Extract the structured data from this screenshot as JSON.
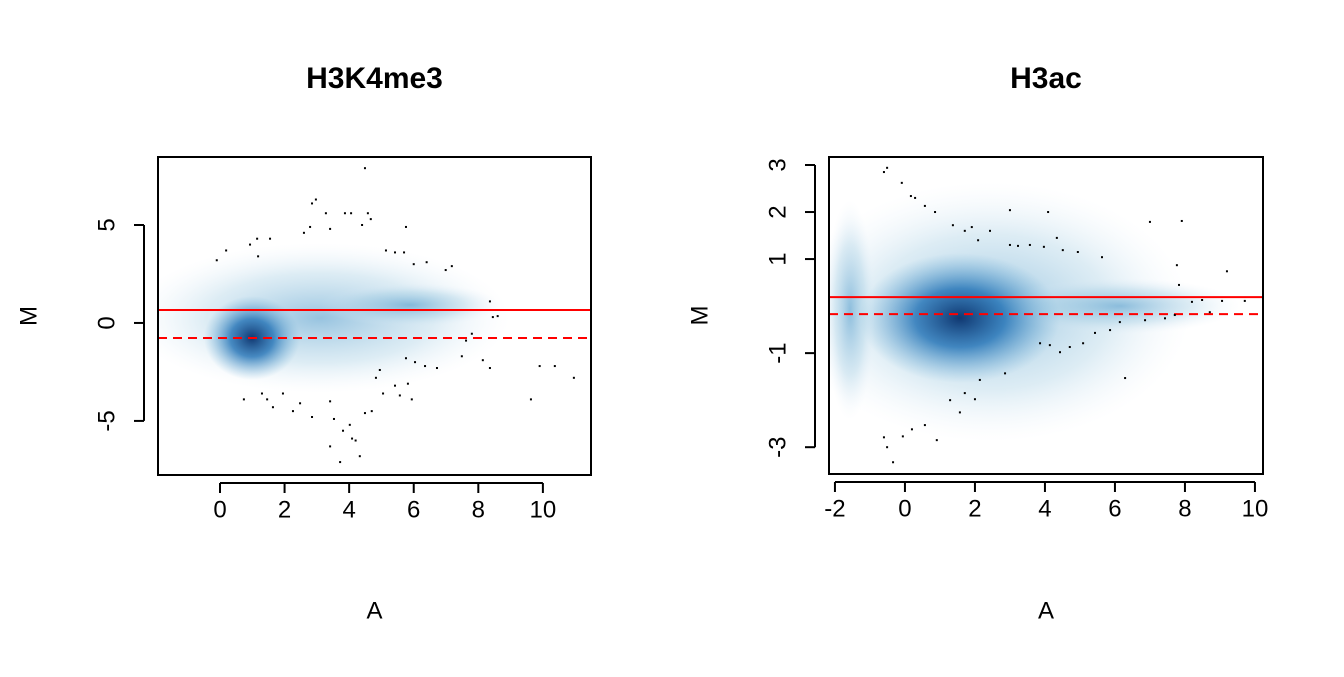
{
  "chart_data": [
    {
      "type": "scatter",
      "title": "H3K4me3",
      "x_label": "A",
      "y_label": "M",
      "xlim": [
        -1.92,
        11.49
      ],
      "ylim": [
        -7.76,
        8.47
      ],
      "xticks": [
        0,
        2,
        4,
        6,
        8,
        10
      ],
      "yticks": [
        -5,
        0,
        5
      ],
      "point_color": "#000000",
      "hline_color": "#ff0000",
      "hlines": [
        0.66,
        -0.77
      ],
      "hline_styles": [
        "solid",
        "dashed"
      ],
      "series": [
        {
          "name": "points",
          "color": "#000000",
          "x": [
            -0.1,
            0.19,
            0.93,
            1.15,
            1.18,
            1.55,
            2.6,
            2.85,
            2.97,
            2.79,
            3.28,
            3.41,
            3.87,
            4.06,
            4.49,
            4.4,
            4.58,
            4.67,
            5.14,
            5.42,
            5.76,
            5.7,
            6.0,
            6.4,
            6.99,
            7.18,
            8.36,
            8.45,
            8.6,
            0.74,
            1.3,
            1.46,
            1.64,
            1.95,
            2.26,
            2.48,
            2.85,
            3.41,
            3.53,
            3.41,
            3.72,
            3.81,
            4.02,
            4.09,
            4.2,
            4.33,
            4.49,
            4.7,
            4.83,
            4.95,
            5.05,
            5.42,
            5.57,
            5.82,
            5.94,
            5.76,
            6.04,
            6.35,
            6.72,
            7.49,
            7.62,
            7.8,
            8.14,
            8.36,
            9.9,
            10.37,
            9.63,
            10.96
          ],
          "values": [
            3.2,
            3.7,
            4.0,
            4.3,
            3.4,
            4.3,
            4.6,
            6.1,
            6.3,
            4.9,
            5.6,
            4.8,
            5.6,
            5.6,
            7.9,
            5.0,
            5.6,
            5.3,
            3.7,
            3.6,
            4.9,
            3.6,
            3.0,
            3.1,
            2.7,
            2.9,
            1.1,
            0.3,
            0.35,
            -3.9,
            -3.6,
            -3.9,
            -4.3,
            -3.6,
            -4.5,
            -4.1,
            -4.8,
            -4.0,
            -4.9,
            -6.3,
            -7.1,
            -5.5,
            -5.2,
            -5.9,
            -6.0,
            -6.8,
            -4.6,
            -4.5,
            -2.8,
            -2.4,
            -3.6,
            -3.2,
            -3.7,
            -3.1,
            -3.9,
            -1.8,
            -2.0,
            -2.2,
            -2.3,
            -1.7,
            -0.9,
            -0.55,
            -1.9,
            -2.3,
            -2.2,
            -2.2,
            -3.9,
            -2.8
          ]
        }
      ]
    },
    {
      "type": "scatter",
      "title": "H3ac",
      "x_label": "A",
      "y_label": "M",
      "xlim": [
        -2.17,
        10.23
      ],
      "ylim": [
        -3.57,
        3.17
      ],
      "xticks": [
        -2,
        0,
        2,
        4,
        6,
        8,
        10
      ],
      "yticks": [
        -3,
        -1,
        1,
        2,
        3
      ],
      "point_color": "#000000",
      "hline_color": "#ff0000",
      "hlines": [
        0.19,
        -0.17
      ],
      "hline_styles": [
        "solid",
        "dashed"
      ],
      "series": [
        {
          "name": "points",
          "color": "#000000",
          "x": [
            -0.6,
            -0.51,
            -0.09,
            0.17,
            0.29,
            0.57,
            0.86,
            1.37,
            1.71,
            1.91,
            2.09,
            2.43,
            3.0,
            3.0,
            3.23,
            3.57,
            3.97,
            4.09,
            4.34,
            4.51,
            4.94,
            5.63,
            7.0,
            7.77,
            7.91,
            7.83,
            8.2,
            8.49,
            9.06,
            9.2,
            9.71,
            -0.6,
            -0.51,
            -0.34,
            -0.06,
            0.2,
            0.57,
            0.91,
            1.29,
            1.57,
            1.71,
            2.0,
            2.14,
            2.86,
            3.86,
            4.14,
            4.43,
            4.71,
            5.09,
            5.43,
            5.86,
            6.14,
            6.29,
            6.86,
            7.43,
            7.71,
            8.71
          ],
          "values": [
            2.85,
            2.94,
            2.62,
            2.34,
            2.3,
            2.13,
            2.0,
            1.72,
            1.6,
            1.68,
            1.4,
            1.6,
            2.04,
            1.3,
            1.28,
            1.3,
            1.26,
            2.0,
            1.45,
            1.19,
            1.15,
            1.04,
            1.79,
            0.87,
            1.81,
            0.45,
            0.09,
            0.13,
            0.11,
            0.74,
            0.11,
            -2.79,
            -3.0,
            -3.32,
            -2.77,
            -2.62,
            -2.53,
            -2.85,
            -2.0,
            -2.26,
            -1.85,
            -1.98,
            -1.57,
            -1.43,
            -0.79,
            -0.83,
            -0.98,
            -0.87,
            -0.79,
            -0.57,
            -0.51,
            -0.34,
            -1.53,
            -0.3,
            -0.26,
            -0.19,
            -0.13
          ]
        }
      ]
    }
  ]
}
